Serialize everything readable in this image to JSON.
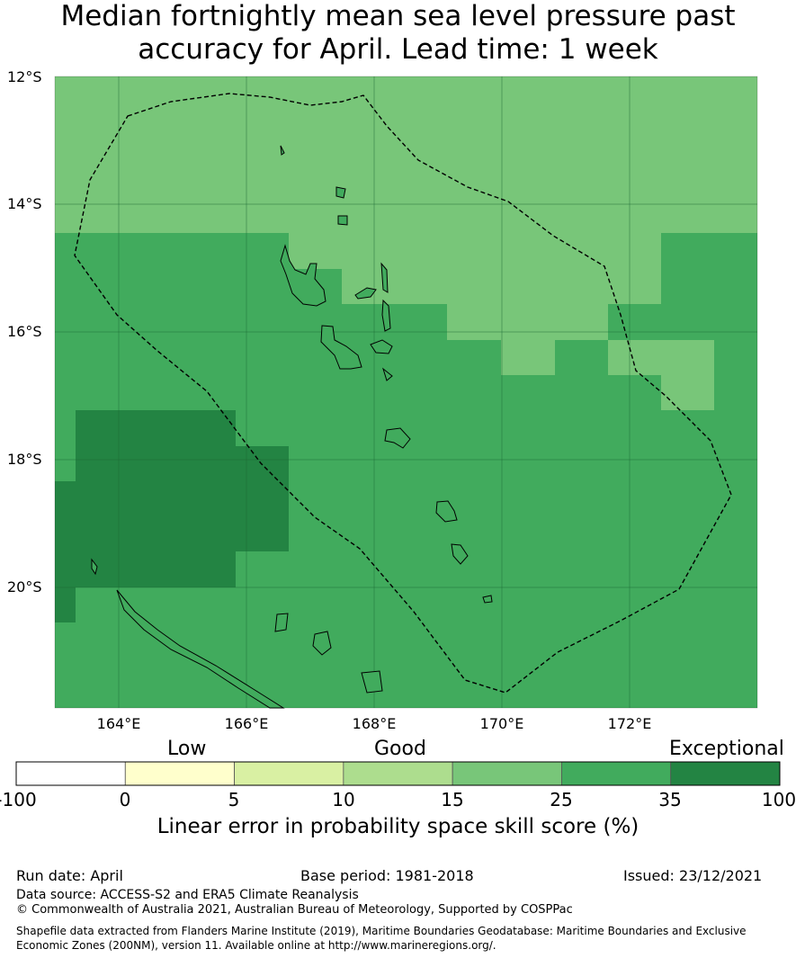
{
  "title_line1": "Median fortnightly mean sea level pressure past",
  "title_line2": "accuracy for April. Lead time: 1 week",
  "lat_labels": [
    "12°S",
    "14°S",
    "16°S",
    "18°S",
    "20°S"
  ],
  "lon_labels": [
    "164°E",
    "166°E",
    "168°E",
    "170°E",
    "172°E"
  ],
  "colorbar": {
    "categories": [
      "Low",
      "Good",
      "Exceptional"
    ],
    "ticks": [
      "-100",
      "0",
      "5",
      "10",
      "15",
      "25",
      "35",
      "100"
    ],
    "colors": [
      "#ffffff",
      "#ffffcc",
      "#d9f0a3",
      "#addd8e",
      "#78c679",
      "#41ab5d",
      "#238443"
    ],
    "label": "Linear error in probability space skill score (%)"
  },
  "footer": {
    "run_date": "Run date: April",
    "base_period": "Base period: 1981-2018",
    "issued": "Issued: 23/12/2021",
    "data_source": "Data source: ACCESS-S2 and ERA5 Climate Reanalysis",
    "copyright": "© Commonwealth of Australia 2021, Australian Bureau of Meteorology, Supported by COSPPac",
    "shapefile_line1": "Shapefile data extracted from Flanders Marine Institute (2019), Maritime Boundaries Geodatabase: Maritime Boundaries and Exclusive",
    "shapefile_line2": "Economic Zones (200NM), version 11. Available online at http://www.marineregions.org/."
  },
  "map_colors": {
    "light": "#78c679",
    "mid": "#41ab5d",
    "dark": "#238443"
  }
}
